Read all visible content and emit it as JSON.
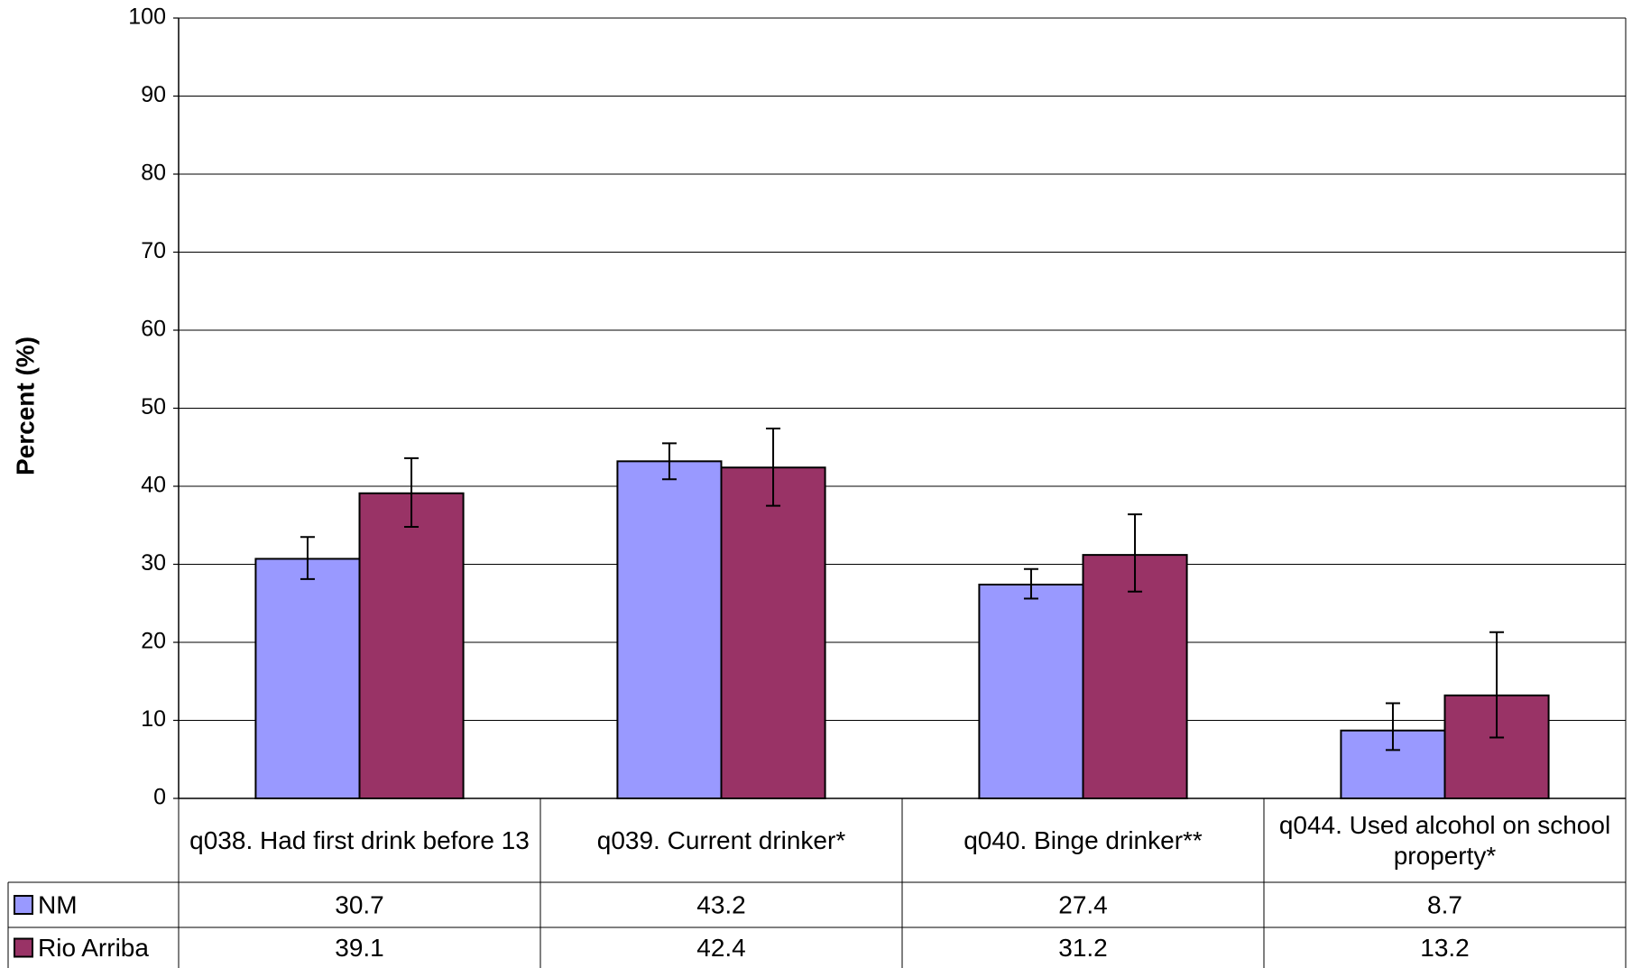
{
  "chart_data": {
    "type": "bar",
    "y_label": "Percent (%)",
    "categories": [
      "q038. Had first drink before 13",
      "q039. Current drinker*",
      "q040. Binge drinker**",
      "q044. Used alcohol on school property*"
    ],
    "series": [
      {
        "name": "NM",
        "color": "#9999ff",
        "values": [
          30.7,
          43.2,
          27.4,
          8.7
        ],
        "ci_low": [
          28.1,
          40.9,
          25.6,
          6.2
        ],
        "ci_high": [
          33.5,
          45.5,
          29.4,
          12.2
        ]
      },
      {
        "name": "Rio Arriba",
        "color": "#993366",
        "values": [
          39.1,
          42.4,
          31.2,
          13.2
        ],
        "ci_low": [
          34.8,
          37.5,
          26.5,
          7.8
        ],
        "ci_high": [
          43.6,
          47.4,
          36.4,
          21.3
        ]
      }
    ],
    "ylim": [
      0,
      100
    ],
    "yticks": [
      0,
      10,
      20,
      30,
      40,
      50,
      60,
      70,
      80,
      90,
      100
    ],
    "grid": true,
    "data_table": true
  }
}
